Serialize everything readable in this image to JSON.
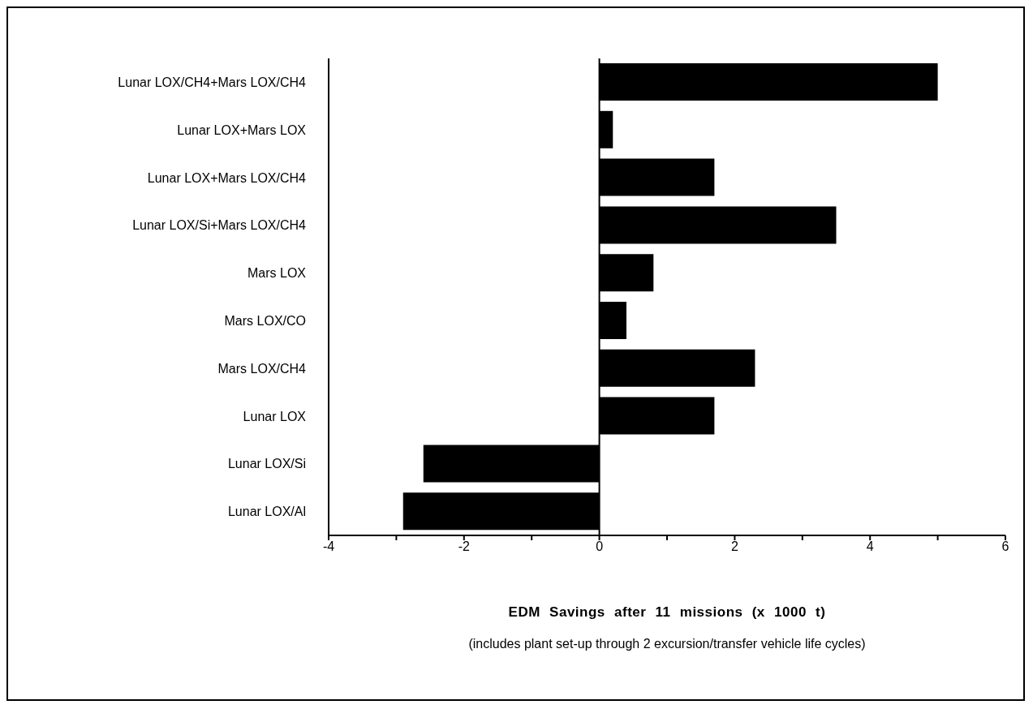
{
  "chart_data": {
    "type": "bar",
    "orientation": "horizontal",
    "categories": [
      "Lunar LOX/CH4+Mars LOX/CH4",
      "Lunar LOX+Mars LOX",
      "Lunar LOX+Mars LOX/CH4",
      "Lunar LOX/Si+Mars LOX/CH4",
      "Mars LOX",
      "Mars LOX/CO",
      "Mars LOX/CH4",
      "Lunar LOX",
      "Lunar LOX/Si",
      "Lunar LOX/Al"
    ],
    "values": [
      5.0,
      0.2,
      1.7,
      3.5,
      0.8,
      0.4,
      2.3,
      1.7,
      -2.6,
      -2.9
    ],
    "color": "#000000",
    "xlim": [
      -4,
      6
    ],
    "xticks": [
      -4,
      {
        "value": -3,
        "label": null
      },
      -2,
      {
        "value": -1,
        "label": null
      },
      0,
      {
        "value": 1,
        "label": null
      },
      2,
      {
        "value": 3,
        "label": null
      },
      4,
      {
        "value": 5,
        "label": null
      },
      6
    ],
    "xlabel": "EDM Savings after 11 missions (x 1000 t)",
    "annotations": [
      "(includes plant set-up through 2 excursion/transfer vehicle life cycles)"
    ],
    "ref_lines": [
      {
        "axis": "x",
        "value": 0,
        "color": "#000000"
      }
    ],
    "grid": false,
    "legend": false
  }
}
